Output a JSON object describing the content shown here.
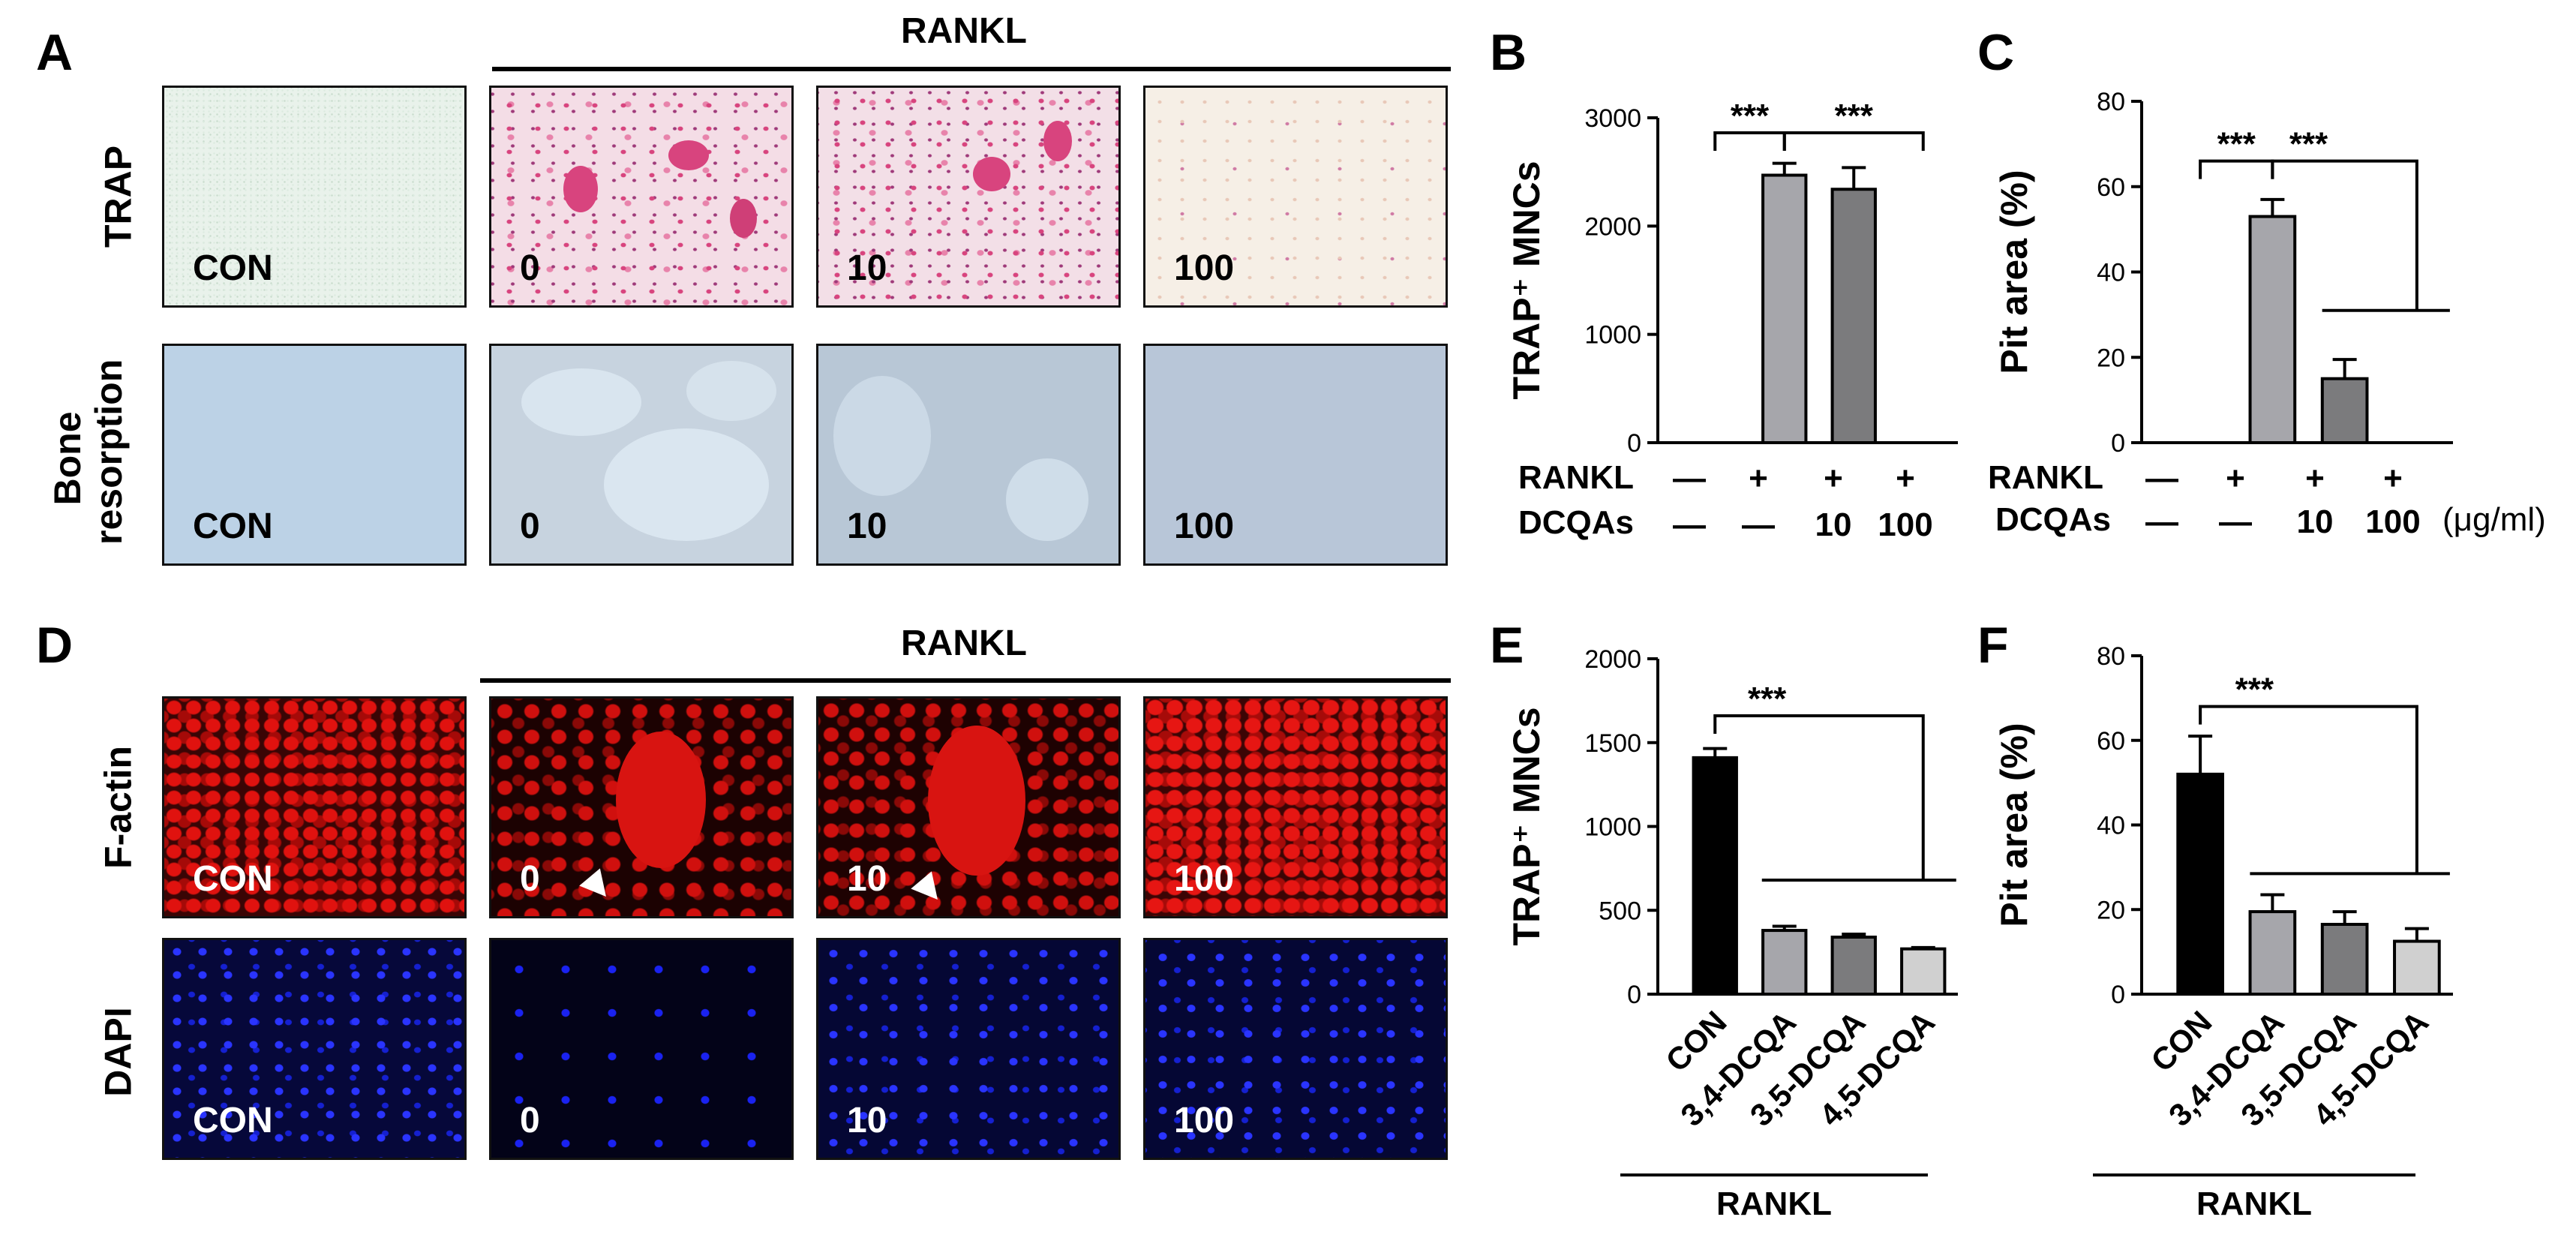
{
  "panel_letters": {
    "a": "A",
    "b": "B",
    "c": "C",
    "d": "D",
    "e": "E",
    "f": "F"
  },
  "panel_a": {
    "header": "RANKL",
    "row_labels": {
      "trap": "TRAP",
      "bone": "Bone resorption"
    },
    "tile_labels": [
      "CON",
      "0",
      "10",
      "100"
    ]
  },
  "panel_d": {
    "header": "RANKL",
    "row_labels": {
      "factin": "F-actin",
      "dapi": "DAPI"
    },
    "tile_labels": [
      "CON",
      "0",
      "10",
      "100"
    ]
  },
  "conditions": {
    "rankl_label": "RANKL",
    "dcqas_label": "DCQAs",
    "rankl": [
      "—",
      "+",
      "+",
      "+"
    ],
    "dcqas": [
      "—",
      "—",
      "10",
      "100"
    ],
    "units": "(μg/ml)"
  },
  "panel_ef_group_label": "RANKL",
  "colors": {
    "light_gray": "#a6a6ab",
    "dark_gray": "#7b7b7d",
    "black": "#000000",
    "pale_gray": "#d0d0d0",
    "trap_pink": "#d8447e",
    "fluor_red": "#e0120f",
    "fluor_blue": "#1a22f0"
  },
  "chart_data": [
    {
      "id": "B",
      "type": "bar",
      "ylabel": "TRAP⁺ MNCs",
      "ylim": [
        0,
        3000
      ],
      "yticks": [
        0,
        1000,
        2000,
        3000
      ],
      "categories": [
        "1",
        "2",
        "3",
        "4"
      ],
      "values": [
        0,
        2470,
        2340,
        0
      ],
      "errors": [
        0,
        110,
        200,
        0
      ],
      "bar_colors": [
        "#a6a6ab",
        "#a6a6ab",
        "#7b7b7d",
        "#7b7b7d"
      ],
      "significance": [
        {
          "label": "***",
          "from": 0,
          "to": 1,
          "type": "bracket"
        },
        {
          "label": "***",
          "from": 1,
          "to": 3,
          "type": "bracket"
        }
      ]
    },
    {
      "id": "C",
      "type": "bar",
      "ylabel": "Pit area (%)",
      "ylim": [
        0,
        80
      ],
      "yticks": [
        0,
        20,
        40,
        60,
        80
      ],
      "categories": [
        "1",
        "2",
        "3",
        "4"
      ],
      "values": [
        0,
        53,
        15,
        0
      ],
      "errors": [
        0,
        4,
        4.5,
        0
      ],
      "bar_colors": [
        "#a6a6ab",
        "#a6a6ab",
        "#7b7b7d",
        "#7b7b7d"
      ],
      "significance": [
        {
          "label": "***",
          "from": 0,
          "to": 1,
          "type": "bracket"
        },
        {
          "label": "***",
          "from": 1,
          "to": 3,
          "type": "drop"
        }
      ]
    },
    {
      "id": "E",
      "type": "bar",
      "ylabel": "TRAP⁺ MNCs",
      "ylim": [
        0,
        2000
      ],
      "yticks": [
        0,
        500,
        1000,
        1500,
        2000
      ],
      "categories": [
        "CON",
        "3,4-DCQA",
        "3,5-DCQA",
        "4,5-DCQA"
      ],
      "values": [
        1410,
        380,
        340,
        270
      ],
      "errors": [
        55,
        25,
        18,
        8
      ],
      "bar_colors": [
        "#000000",
        "#a6a6ab",
        "#7b7b7d",
        "#d0d0d0"
      ],
      "significance": [
        {
          "label": "***",
          "from": 0,
          "to": 3,
          "type": "drop"
        }
      ]
    },
    {
      "id": "F",
      "type": "bar",
      "ylabel": "Pit area (%)",
      "ylim": [
        0,
        80
      ],
      "yticks": [
        0,
        20,
        40,
        60,
        80
      ],
      "categories": [
        "CON",
        "3,4-DCQA",
        "3,5-DCQA",
        "4,5-DCQA"
      ],
      "values": [
        52,
        19.5,
        16.5,
        12.5
      ],
      "errors": [
        9,
        4,
        3,
        3
      ],
      "bar_colors": [
        "#000000",
        "#a6a6ab",
        "#7b7b7d",
        "#d0d0d0"
      ],
      "significance": [
        {
          "label": "***",
          "from": 0,
          "to": 3,
          "type": "drop"
        }
      ]
    }
  ]
}
